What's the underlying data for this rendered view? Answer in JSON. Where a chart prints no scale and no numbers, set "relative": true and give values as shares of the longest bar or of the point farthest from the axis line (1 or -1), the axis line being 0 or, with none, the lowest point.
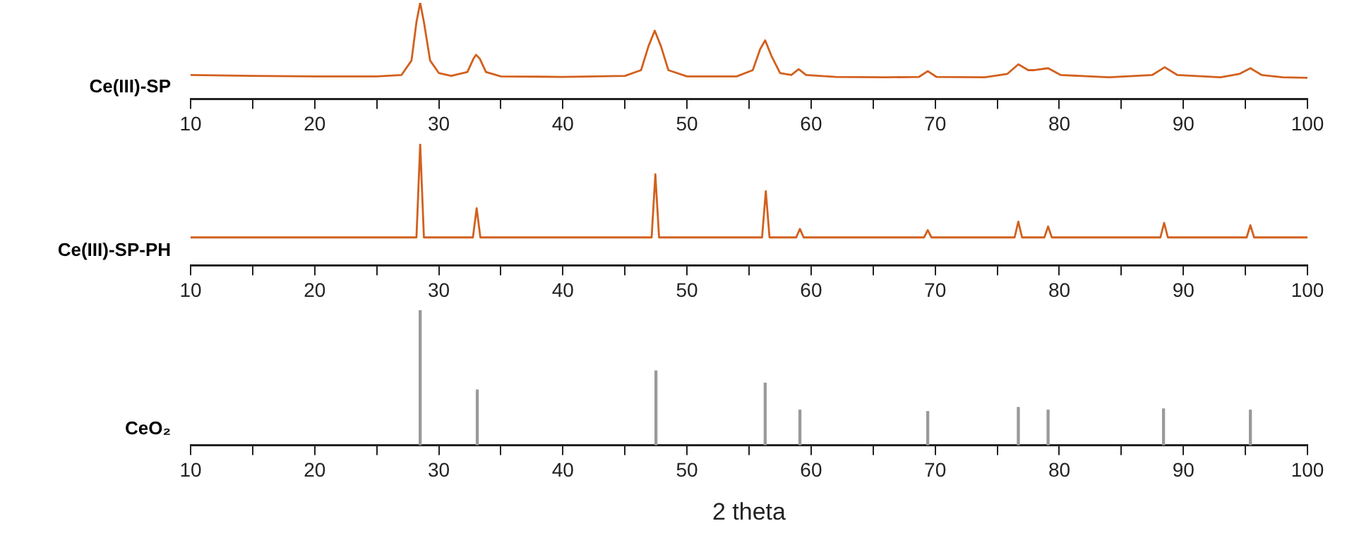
{
  "chart_data": [
    {
      "type": "line",
      "relative": true,
      "tick_labels": "x",
      "xlim": [
        10,
        100
      ],
      "xticks": [
        10,
        {
          "value": 15,
          "label": null
        },
        20,
        {
          "value": 25,
          "label": null
        },
        30,
        {
          "value": 35,
          "label": null
        },
        40,
        {
          "value": 45,
          "label": null
        },
        50,
        {
          "value": 55,
          "label": null
        },
        60,
        {
          "value": 65,
          "label": null
        },
        70,
        {
          "value": 75,
          "label": null
        },
        80,
        {
          "value": 85,
          "label": null
        },
        90,
        {
          "value": 95,
          "label": null
        },
        100
      ],
      "series": [
        {
          "name": "Ce(III)-SP",
          "color": "#d2601e",
          "x": [
            10,
            15,
            20,
            25,
            27,
            27.8,
            28.2,
            28.5,
            28.8,
            29.3,
            30,
            31,
            32.3,
            32.8,
            33,
            33.3,
            33.8,
            35,
            40,
            45,
            46.3,
            46.9,
            47.4,
            47.9,
            48.5,
            50,
            54,
            55.3,
            55.9,
            56.3,
            56.8,
            57.5,
            58.4,
            59,
            59.6,
            62,
            66,
            68.7,
            69.4,
            70.1,
            74,
            75.8,
            76.7,
            77.5,
            78,
            79.1,
            80.1,
            84,
            87.5,
            88.5,
            89.5,
            93,
            94.5,
            95.4,
            96.3,
            98,
            100
          ],
          "values": [
            0.25,
            0.24,
            0.235,
            0.235,
            0.25,
            0.4,
            0.8,
            1.0,
            0.8,
            0.4,
            0.27,
            0.24,
            0.28,
            0.42,
            0.46,
            0.42,
            0.28,
            0.235,
            0.23,
            0.24,
            0.3,
            0.55,
            0.71,
            0.55,
            0.3,
            0.235,
            0.235,
            0.3,
            0.52,
            0.61,
            0.45,
            0.27,
            0.25,
            0.31,
            0.25,
            0.23,
            0.225,
            0.23,
            0.29,
            0.23,
            0.225,
            0.26,
            0.36,
            0.3,
            0.3,
            0.32,
            0.25,
            0.225,
            0.25,
            0.33,
            0.25,
            0.225,
            0.26,
            0.32,
            0.25,
            0.225,
            0.22
          ]
        }
      ]
    },
    {
      "type": "line",
      "relative": true,
      "tick_labels": "x",
      "xlim": [
        10,
        100
      ],
      "xticks": [
        10,
        {
          "value": 15,
          "label": null
        },
        20,
        {
          "value": 25,
          "label": null
        },
        30,
        {
          "value": 35,
          "label": null
        },
        40,
        {
          "value": 45,
          "label": null
        },
        50,
        {
          "value": 55,
          "label": null
        },
        60,
        {
          "value": 65,
          "label": null
        },
        70,
        {
          "value": 75,
          "label": null
        },
        80,
        {
          "value": 85,
          "label": null
        },
        90,
        {
          "value": 95,
          "label": null
        },
        100
      ],
      "series": [
        {
          "name": "Ce(III)-SP-PH",
          "color": "#d2601e",
          "x": [
            10,
            20,
            28.2,
            28.5,
            28.8,
            32.75,
            33.05,
            33.35,
            40,
            47.15,
            47.45,
            47.75,
            56.05,
            56.35,
            56.65,
            58.8,
            59.1,
            59.4,
            69.1,
            69.4,
            69.7,
            76.4,
            76.7,
            77,
            78.8,
            79.1,
            79.4,
            88.15,
            88.45,
            88.75,
            95.1,
            95.4,
            95.7,
            100
          ],
          "values": [
            0.23,
            0.23,
            0.23,
            1.0,
            0.23,
            0.23,
            0.47,
            0.23,
            0.23,
            0.23,
            0.75,
            0.23,
            0.23,
            0.61,
            0.23,
            0.23,
            0.3,
            0.23,
            0.23,
            0.29,
            0.23,
            0.23,
            0.36,
            0.23,
            0.23,
            0.32,
            0.23,
            0.23,
            0.35,
            0.23,
            0.23,
            0.33,
            0.23,
            0.23
          ]
        }
      ]
    },
    {
      "type": "bar",
      "relative": true,
      "tick_labels": "x",
      "xlim": [
        10,
        100
      ],
      "xlabel": "2 theta",
      "xticks": [
        10,
        {
          "value": 15,
          "label": null
        },
        20,
        {
          "value": 25,
          "label": null
        },
        30,
        {
          "value": 35,
          "label": null
        },
        40,
        {
          "value": 45,
          "label": null
        },
        50,
        {
          "value": 55,
          "label": null
        },
        60,
        {
          "value": 65,
          "label": null
        },
        70,
        {
          "value": 75,
          "label": null
        },
        80,
        {
          "value": 85,
          "label": null
        },
        90,
        {
          "value": 95,
          "label": null
        },
        100
      ],
      "series": [
        {
          "name": "CeO₂",
          "color": "#9a9a9a",
          "x": [
            28.5,
            33.1,
            47.5,
            56.3,
            59.1,
            69.4,
            76.7,
            79.1,
            88.4,
            95.4
          ],
          "values": [
            1.0,
            0.41,
            0.55,
            0.46,
            0.26,
            0.25,
            0.28,
            0.26,
            0.27,
            0.26
          ]
        }
      ]
    }
  ]
}
